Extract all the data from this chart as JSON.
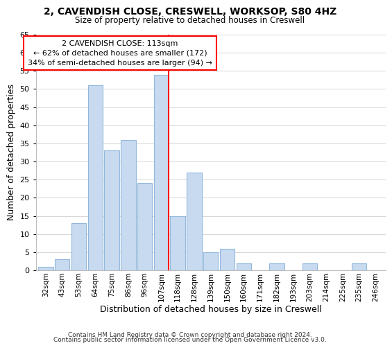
{
  "title1": "2, CAVENDISH CLOSE, CRESWELL, WORKSOP, S80 4HZ",
  "title2": "Size of property relative to detached houses in Creswell",
  "xlabel": "Distribution of detached houses by size in Creswell",
  "ylabel": "Number of detached properties",
  "bar_color": "#c8daf0",
  "bar_edge_color": "#92b8dc",
  "bins": [
    "32sqm",
    "43sqm",
    "53sqm",
    "64sqm",
    "75sqm",
    "86sqm",
    "96sqm",
    "107sqm",
    "118sqm",
    "128sqm",
    "139sqm",
    "150sqm",
    "160sqm",
    "171sqm",
    "182sqm",
    "193sqm",
    "203sqm",
    "214sqm",
    "225sqm",
    "235sqm",
    "246sqm"
  ],
  "values": [
    1,
    3,
    13,
    51,
    33,
    36,
    24,
    54,
    15,
    27,
    5,
    6,
    2,
    0,
    2,
    0,
    2,
    0,
    0,
    2,
    0
  ],
  "vline_x_index": 7,
  "annotation_title": "2 CAVENDISH CLOSE: 113sqm",
  "annotation_line1": "← 62% of detached houses are smaller (172)",
  "annotation_line2": "34% of semi-detached houses are larger (94) →",
  "ylim": [
    0,
    65
  ],
  "yticks": [
    0,
    5,
    10,
    15,
    20,
    25,
    30,
    35,
    40,
    45,
    50,
    55,
    60,
    65
  ],
  "footer1": "Contains HM Land Registry data © Crown copyright and database right 2024.",
  "footer2": "Contains public sector information licensed under the Open Government Licence v3.0."
}
